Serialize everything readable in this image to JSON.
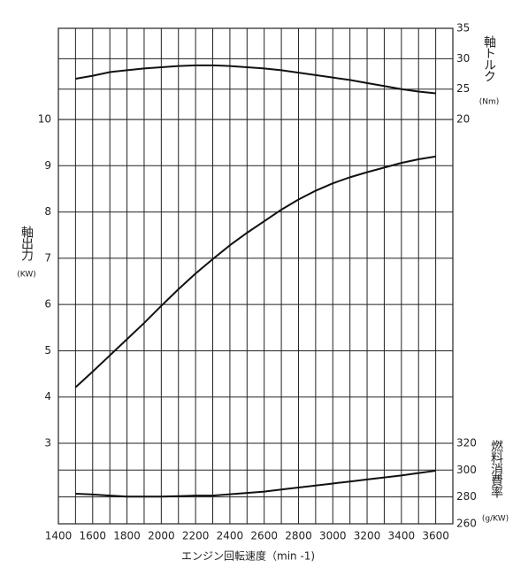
{
  "chart_data": {
    "type": "line",
    "x_label": "エンジン回転速度（min -1)",
    "xlim": [
      1400,
      3700
    ],
    "xticks": [
      1400,
      1600,
      1800,
      2000,
      2200,
      2400,
      2600,
      2800,
      3000,
      3200,
      3400,
      3600
    ],
    "x": [
      1500,
      1600,
      1700,
      1800,
      1900,
      2000,
      2100,
      2200,
      2300,
      2400,
      2500,
      2600,
      2700,
      2800,
      2900,
      3000,
      3100,
      3200,
      3300,
      3400,
      3500,
      3600
    ],
    "y_label": "軸出力",
    "y_unit": "(KW)",
    "ylim": [
      1.26,
      11.97
    ],
    "yticks": [
      3,
      4,
      5,
      6,
      7,
      8,
      9,
      10
    ],
    "y2_label": "軸トルク",
    "y2_unit": "(Nm)",
    "y2lim": [
      -46.5,
      35
    ],
    "y2ticks": [
      20,
      25,
      30,
      35
    ],
    "y3_label": "燃料消費率",
    "y3_unit": "(g/KW)",
    "y3lim": [
      260,
      629
    ],
    "y3ticks": [
      260,
      280,
      300,
      320
    ],
    "grid": true,
    "series": [
      {
        "name": "軸出力",
        "color": "#111111",
        "axis": "y",
        "values": [
          4.21,
          4.55,
          4.9,
          5.25,
          5.6,
          5.97,
          6.33,
          6.67,
          6.98,
          7.28,
          7.55,
          7.8,
          8.05,
          8.27,
          8.46,
          8.62,
          8.75,
          8.86,
          8.96,
          9.06,
          9.14,
          9.2
        ]
      },
      {
        "name": "軸トルク",
        "color": "#111111",
        "axis": "y2",
        "values": [
          26.7,
          27.2,
          27.8,
          28.1,
          28.4,
          28.6,
          28.8,
          28.9,
          28.9,
          28.8,
          28.6,
          28.4,
          28.1,
          27.7,
          27.3,
          26.9,
          26.5,
          26.0,
          25.5,
          25.0,
          24.6,
          24.3
        ]
      },
      {
        "name": "燃料消費率",
        "color": "#111111",
        "axis": "y3",
        "values": [
          282.4,
          281.8,
          281.0,
          280.3,
          280.3,
          280.3,
          280.6,
          281.0,
          281.0,
          282.0,
          283.0,
          284.0,
          285.5,
          287.0,
          288.5,
          290.0,
          291.5,
          293.0,
          294.5,
          296.0,
          297.8,
          299.5
        ]
      }
    ]
  }
}
